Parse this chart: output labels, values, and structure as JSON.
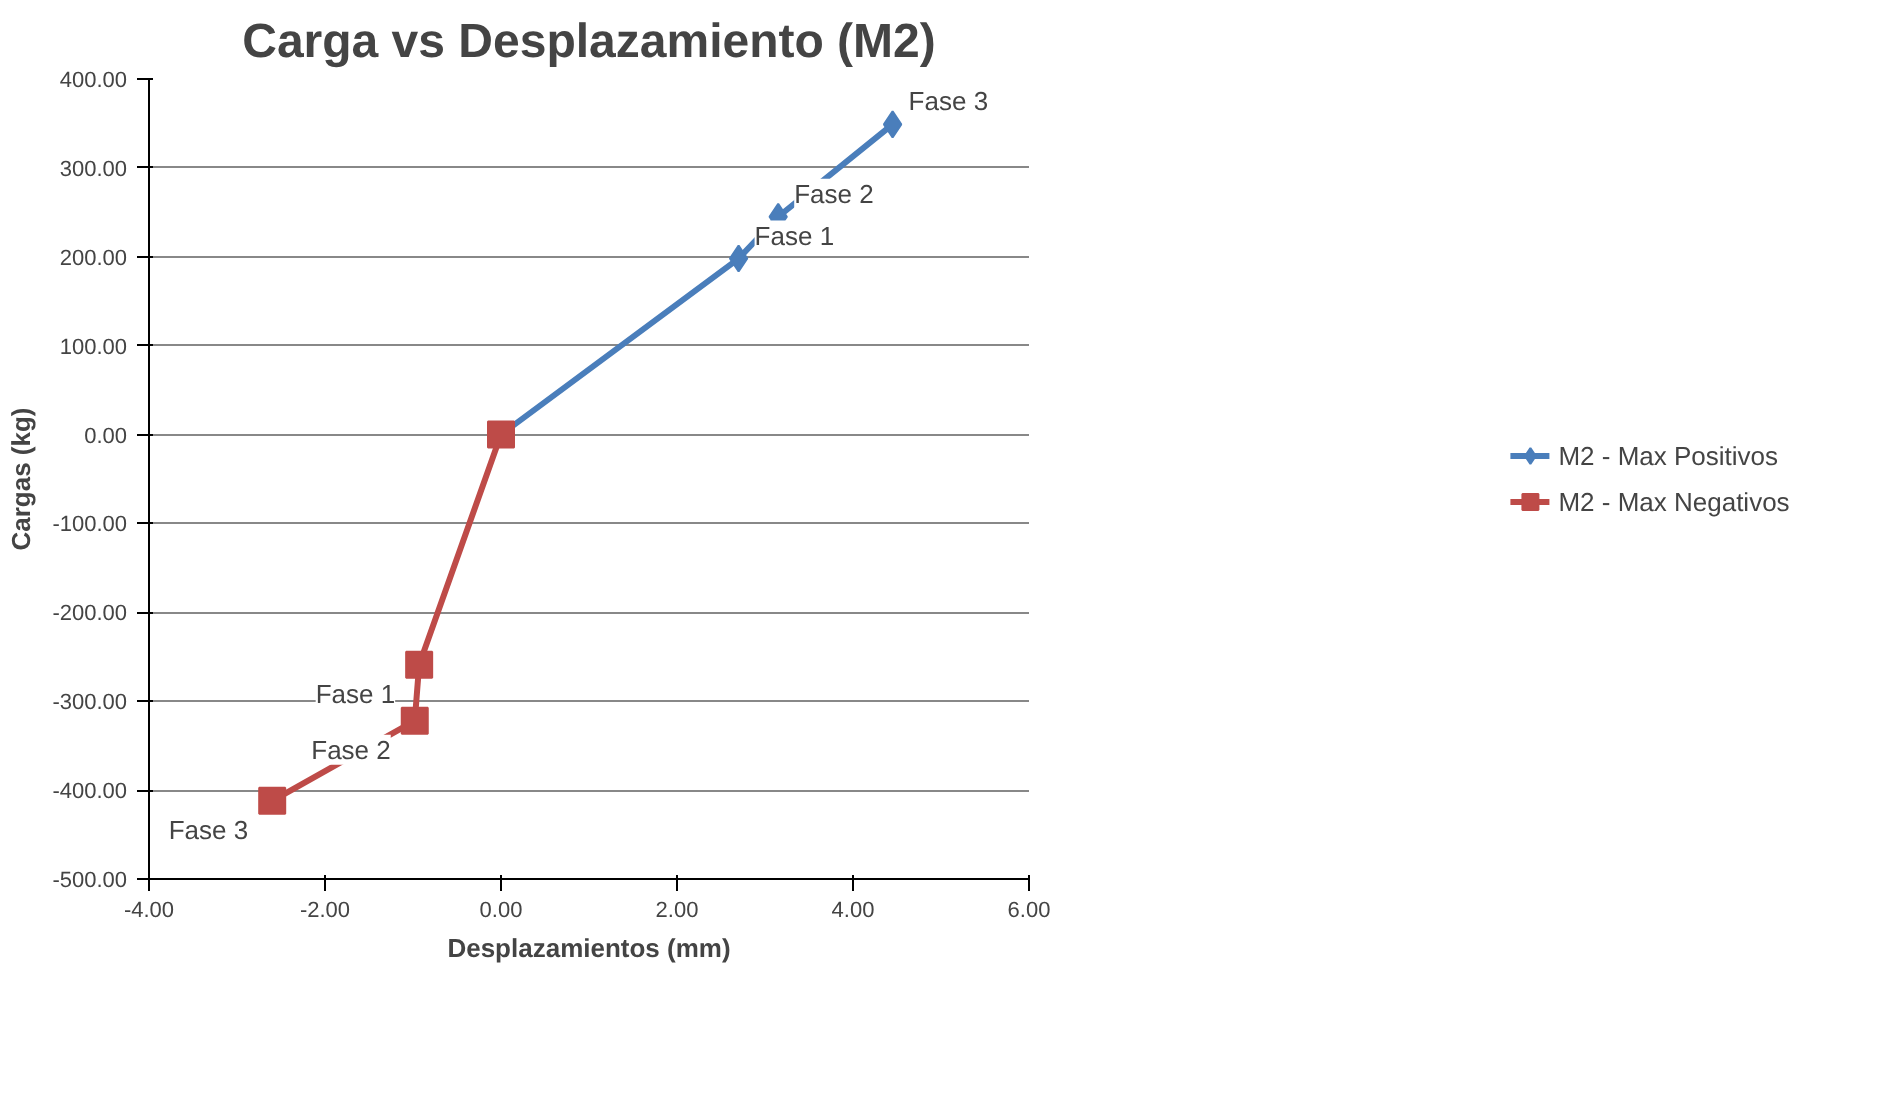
{
  "chart_data": {
    "type": "line",
    "title": "Carga vs Desplazamiento (M2)",
    "xlabel": "Desplazamientos (mm)",
    "ylabel": "Cargas (kg)",
    "xlim": [
      -4,
      6
    ],
    "xticks": [
      {
        "value": -4,
        "label": "-4.00"
      },
      {
        "value": -2,
        "label": "-2.00"
      },
      {
        "value": 0,
        "label": "0.00"
      },
      {
        "value": 2,
        "label": "2.00"
      },
      {
        "value": 4,
        "label": "4.00"
      },
      {
        "value": 6,
        "label": "6.00"
      }
    ],
    "ylim": [
      -500,
      400
    ],
    "yticks": [
      {
        "value": -500,
        "label": "-500.00"
      },
      {
        "value": -400,
        "label": "-400.00"
      },
      {
        "value": -300,
        "label": "-300.00"
      },
      {
        "value": -200,
        "label": "-200.00"
      },
      {
        "value": -100,
        "label": "-100.00"
      },
      {
        "value": 0,
        "label": "0.00"
      },
      {
        "value": 100,
        "label": "100.00"
      },
      {
        "value": 200,
        "label": "200.00"
      },
      {
        "value": 300,
        "label": "300.00"
      },
      {
        "value": 400,
        "label": "400.00"
      }
    ],
    "grid": "y",
    "legend": "right",
    "line_style": "solid",
    "series": [
      {
        "name": "M2 - Max Positivos",
        "color": "#4a7ebb",
        "marker": "diamond",
        "x": [
          0,
          2.7,
          3.15,
          4.45
        ],
        "values": [
          0,
          198,
          245,
          349
        ]
      },
      {
        "name": "M2 - Max Negativos",
        "color": "#be4b48",
        "marker": "square",
        "x": [
          0,
          -0.93,
          -0.98,
          -2.6
        ],
        "values": [
          0,
          -259,
          -322,
          -412
        ]
      }
    ],
    "annotations": [
      {
        "text": "Fase 1",
        "x": 2.7,
        "y": 198
      },
      {
        "text": "Fase 2",
        "x": 3.15,
        "y": 245
      },
      {
        "text": "Fase 3",
        "x": 4.45,
        "y": 349
      },
      {
        "text": "Fase 1",
        "x": -0.93,
        "y": -259
      },
      {
        "text": "Fase 2",
        "x": -0.98,
        "y": -322
      },
      {
        "text": "Fase 3",
        "x": -2.6,
        "y": -412
      }
    ]
  }
}
